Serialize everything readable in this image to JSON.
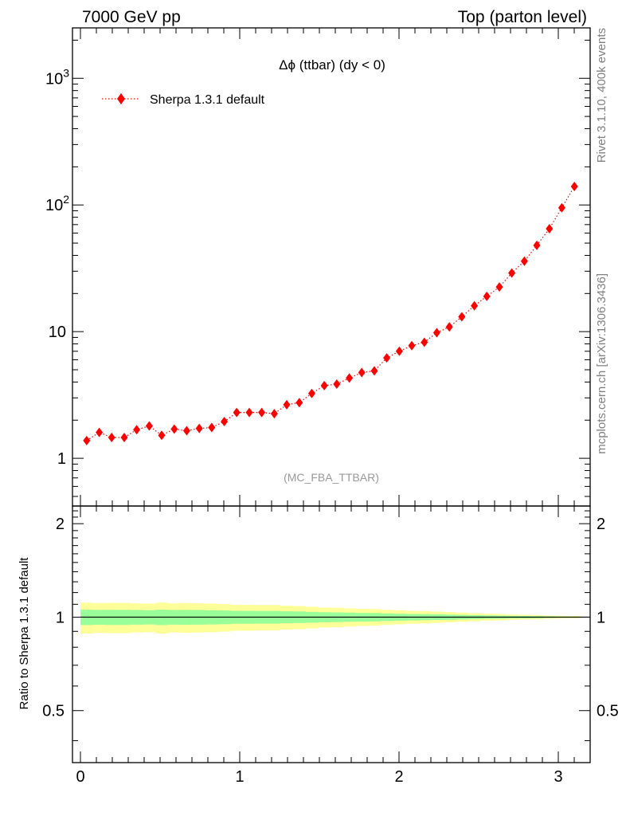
{
  "header": {
    "left": "7000 GeV pp",
    "right": "Top (parton level)"
  },
  "side_labels": {
    "rivet": "Rivet 3.1.10,  400k events",
    "mcplots": "mcplots.cern.ch [arXiv:1306.3436]"
  },
  "analysis_tag": "(MC_FBA_TTBAR)",
  "colors": {
    "series": "#ff0000",
    "band_outer": "#ffff99",
    "band_inner": "#99ff99",
    "ref_line": "#000000"
  },
  "chart_data": [
    {
      "type": "scatter",
      "title": "Δϕ (ttbar) (dy < 0)",
      "xlabel": "",
      "ylabel": "",
      "xlim": [
        -0.05,
        3.2
      ],
      "ylim": [
        0.42,
        2500
      ],
      "yscale": "log",
      "yticks": [
        1,
        10,
        100,
        1000
      ],
      "ytick_labels": [
        "1",
        "10",
        "10^2",
        "10^3"
      ],
      "legend": {
        "placement": "top-left",
        "entries": [
          "Sherpa 1.3.1 default"
        ]
      },
      "series": [
        {
          "name": "Sherpa 1.3.1 default",
          "marker": "diamond",
          "linestyle": "dotted",
          "x": [
            0.039,
            0.118,
            0.196,
            0.275,
            0.353,
            0.432,
            0.51,
            0.589,
            0.667,
            0.746,
            0.824,
            0.903,
            0.981,
            1.06,
            1.138,
            1.217,
            1.295,
            1.374,
            1.452,
            1.531,
            1.609,
            1.688,
            1.766,
            1.845,
            1.923,
            2.002,
            2.08,
            2.159,
            2.237,
            2.316,
            2.394,
            2.473,
            2.551,
            2.63,
            2.708,
            2.787,
            2.865,
            2.944,
            3.022,
            3.101
          ],
          "y": [
            1.38,
            1.6,
            1.46,
            1.46,
            1.68,
            1.8,
            1.52,
            1.7,
            1.65,
            1.72,
            1.75,
            1.95,
            2.3,
            2.3,
            2.3,
            2.25,
            2.65,
            2.75,
            3.25,
            3.75,
            3.85,
            4.3,
            4.75,
            4.9,
            6.2,
            7.0,
            7.75,
            8.25,
            9.8,
            10.9,
            13.1,
            16.0,
            19.0,
            22.5,
            29.0,
            36.0,
            48.0,
            65.0,
            95.0,
            140.0
          ]
        }
      ]
    },
    {
      "type": "area",
      "title": "",
      "xlabel": "",
      "ylabel": "Ratio to Sherpa 1.3.1 default",
      "xlim": [
        -0.05,
        3.2
      ],
      "ylim": [
        0.34,
        2.28
      ],
      "yscale": "log",
      "yticks": [
        0.5,
        1,
        2
      ],
      "ytick_labels": [
        "0.5",
        "1",
        "2"
      ],
      "xticks": [
        0,
        1,
        2,
        3
      ],
      "xtick_labels": [
        "0",
        "1",
        "2",
        "3"
      ],
      "reference": 1,
      "bins": [
        0,
        0.0785,
        0.157,
        0.2355,
        0.314,
        0.3925,
        0.471,
        0.5495,
        0.628,
        0.7065,
        0.785,
        0.8635,
        0.942,
        1.0205,
        1.099,
        1.1775,
        1.256,
        1.3345,
        1.413,
        1.4915,
        1.57,
        1.6485,
        1.727,
        1.8055,
        1.884,
        1.9625,
        2.041,
        2.1195,
        2.198,
        2.2765,
        2.355,
        2.4335,
        2.512,
        2.5905,
        2.669,
        2.7475,
        2.826,
        2.9045,
        2.983,
        3.0615,
        3.14
      ],
      "band_inner": [
        0.057,
        0.055,
        0.056,
        0.056,
        0.054,
        0.053,
        0.057,
        0.054,
        0.055,
        0.054,
        0.053,
        0.051,
        0.048,
        0.048,
        0.047,
        0.047,
        0.044,
        0.043,
        0.04,
        0.037,
        0.036,
        0.034,
        0.032,
        0.031,
        0.028,
        0.026,
        0.024,
        0.023,
        0.021,
        0.019,
        0.017,
        0.015,
        0.013,
        0.012,
        0.01,
        0.009,
        0.008,
        0.006,
        0.005,
        0.004
      ],
      "band_outer": [
        0.114,
        0.11,
        0.112,
        0.112,
        0.108,
        0.106,
        0.114,
        0.108,
        0.11,
        0.108,
        0.106,
        0.102,
        0.096,
        0.096,
        0.094,
        0.094,
        0.088,
        0.086,
        0.08,
        0.074,
        0.072,
        0.068,
        0.064,
        0.062,
        0.056,
        0.052,
        0.048,
        0.046,
        0.042,
        0.038,
        0.034,
        0.03,
        0.026,
        0.024,
        0.02,
        0.018,
        0.016,
        0.012,
        0.01,
        0.008
      ]
    }
  ]
}
